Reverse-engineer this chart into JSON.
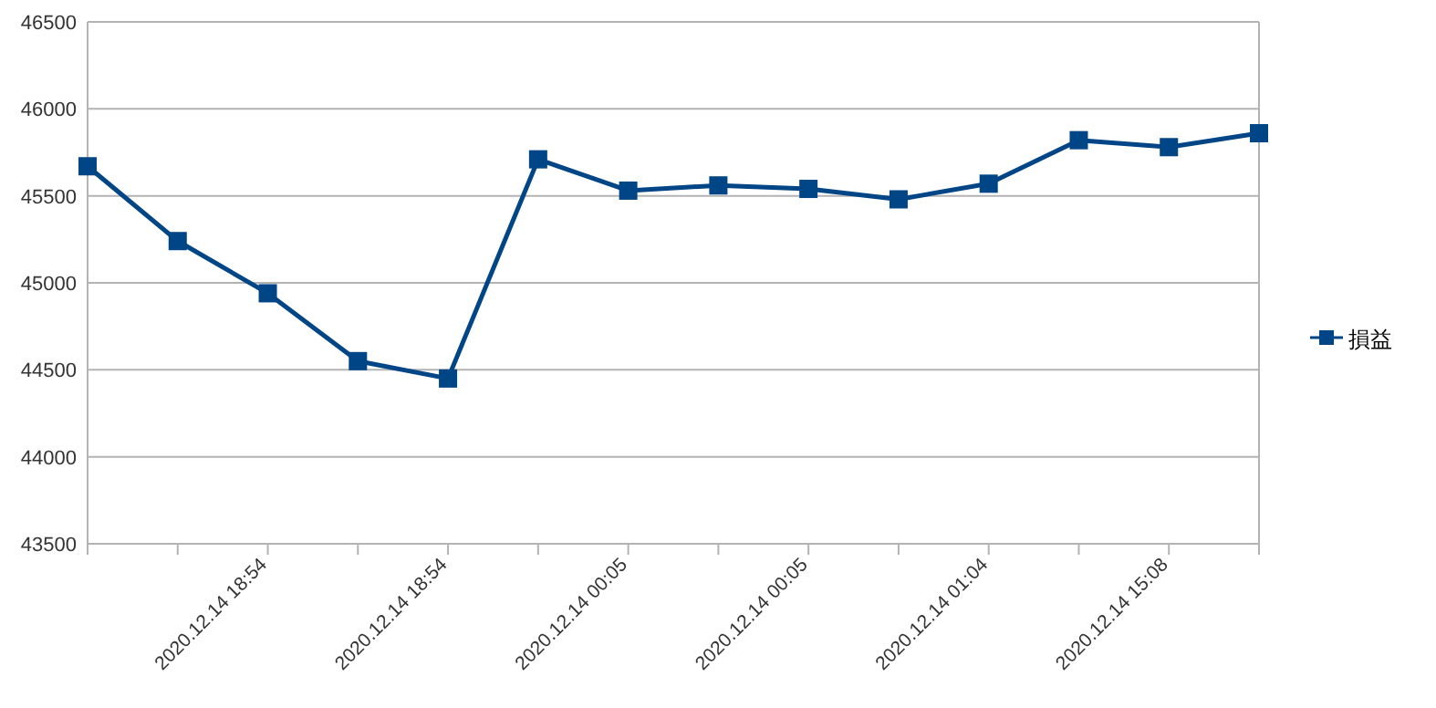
{
  "chart_data": {
    "type": "line",
    "categories": [
      null,
      null,
      "2020.12.14 18:54",
      null,
      "2020.12.14 18:54",
      null,
      "2020.12.14 00:05",
      null,
      "2020.12.14 00:05",
      null,
      "2020.12.14 01:04",
      null,
      "2020.12.14 15:08",
      null
    ],
    "series": [
      {
        "name": "損益",
        "color": "#004586",
        "values": [
          45670,
          45240,
          44940,
          44550,
          44450,
          45710,
          45530,
          45560,
          45540,
          45480,
          45570,
          45820,
          45780,
          45860
        ]
      }
    ],
    "ylim": [
      43500,
      46500
    ],
    "yticks": [
      43500,
      44000,
      44500,
      45000,
      45500,
      46000,
      46500
    ],
    "grid": "y",
    "legend": "right",
    "marker": "square",
    "line_style": "solid"
  }
}
